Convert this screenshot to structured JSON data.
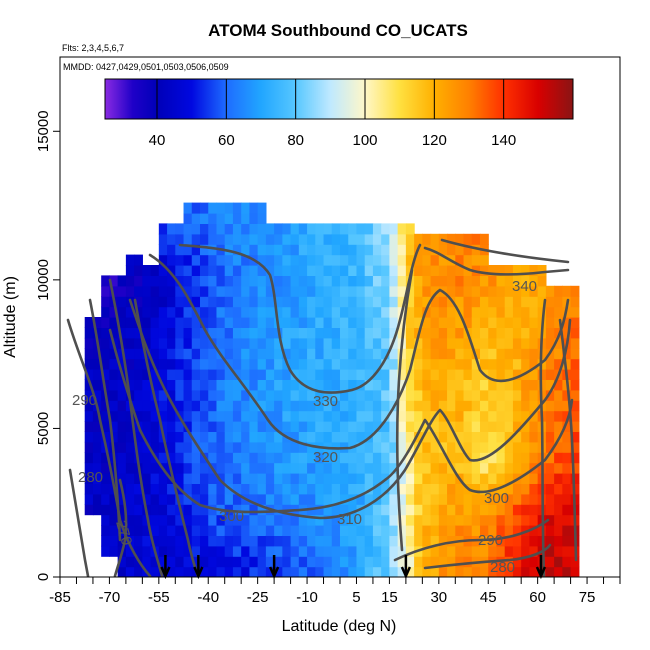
{
  "chart_data": {
    "type": "heatmap",
    "title": "ATOM4 Southbound CO_UCATS",
    "notes": [
      "Flts: 2,3,4,5,6,7",
      "MMDD: 0427,0429,0501,0503,0506,0509"
    ],
    "xlabel": "Latitude (deg N)",
    "ylabel": "Altitude (m)",
    "xlim": [
      -85,
      85
    ],
    "ylim": [
      0,
      17500
    ],
    "xticks": [
      -85,
      -70,
      -55,
      -40,
      -25,
      -10,
      5,
      15,
      30,
      45,
      60,
      75
    ],
    "yticks": [
      0,
      5000,
      10000,
      15000
    ],
    "colorbar": {
      "range": [
        25,
        160
      ],
      "ticks": [
        40,
        60,
        80,
        100,
        120,
        140
      ],
      "stops": [
        {
          "v": 25,
          "c": "#8a2be2"
        },
        {
          "v": 33,
          "c": "#1f00c8"
        },
        {
          "v": 40,
          "c": "#0000b8"
        },
        {
          "v": 50,
          "c": "#0008e0"
        },
        {
          "v": 60,
          "c": "#1e6cff"
        },
        {
          "v": 70,
          "c": "#21a6ff"
        },
        {
          "v": 80,
          "c": "#57c7ff"
        },
        {
          "v": 90,
          "c": "#bfe9ff"
        },
        {
          "v": 100,
          "c": "#fff7c8"
        },
        {
          "v": 110,
          "c": "#ffe040"
        },
        {
          "v": 120,
          "c": "#ffb000"
        },
        {
          "v": 130,
          "c": "#ff8000"
        },
        {
          "v": 140,
          "c": "#ff3000"
        },
        {
          "v": 150,
          "c": "#d80000"
        },
        {
          "v": 160,
          "c": "#8a1414"
        }
      ]
    },
    "co_field": {
      "description_of_values": "CO mixing ratio (ppb) at latitude/altitude nodes",
      "lat_nodes": [
        -75,
        -65,
        -55,
        -45,
        -35,
        -25,
        -15,
        -5,
        5,
        15,
        20,
        25,
        35,
        45,
        55,
        65,
        72
      ],
      "alt_nodes": [
        0,
        2000,
        4000,
        6000,
        8000,
        10000,
        12000
      ],
      "values": [
        [
          44,
          45,
          46,
          47,
          49,
          52,
          56,
          62,
          70,
          82,
          95,
          120,
          128,
          130,
          148,
          155,
          150
        ],
        [
          43,
          45,
          47,
          52,
          58,
          60,
          63,
          66,
          70,
          82,
          100,
          118,
          125,
          128,
          140,
          150,
          148
        ],
        [
          42,
          44,
          48,
          55,
          62,
          65,
          68,
          70,
          72,
          78,
          100,
          115,
          118,
          105,
          122,
          135,
          138
        ],
        [
          42,
          43,
          48,
          56,
          63,
          66,
          70,
          72,
          74,
          80,
          108,
          118,
          120,
          112,
          122,
          130,
          135
        ],
        [
          41,
          42,
          46,
          55,
          62,
          66,
          70,
          72,
          74,
          80,
          110,
          122,
          124,
          118,
          120,
          128,
          132
        ],
        [
          32,
          38,
          42,
          52,
          60,
          64,
          68,
          72,
          75,
          85,
          112,
          125,
          128,
          126,
          120,
          125,
          128
        ],
        [
          50,
          52,
          56,
          60,
          64,
          66,
          70,
          72,
          76,
          88,
          110,
          125,
          128,
          130,
          135,
          140,
          140
        ]
      ]
    },
    "theta_contours": [
      {
        "label": "340",
        "level": 340
      },
      {
        "label": "330",
        "level": 330
      },
      {
        "label": "320",
        "level": 320
      },
      {
        "label": "310",
        "level": 310
      },
      {
        "label": "300",
        "level": 300
      },
      {
        "label": "290",
        "level": 290
      },
      {
        "label": "280",
        "level": 280
      },
      {
        "label": "270",
        "level": 270
      }
    ],
    "flight_markers_lat": [
      -53,
      -43,
      -20,
      20,
      61
    ]
  }
}
